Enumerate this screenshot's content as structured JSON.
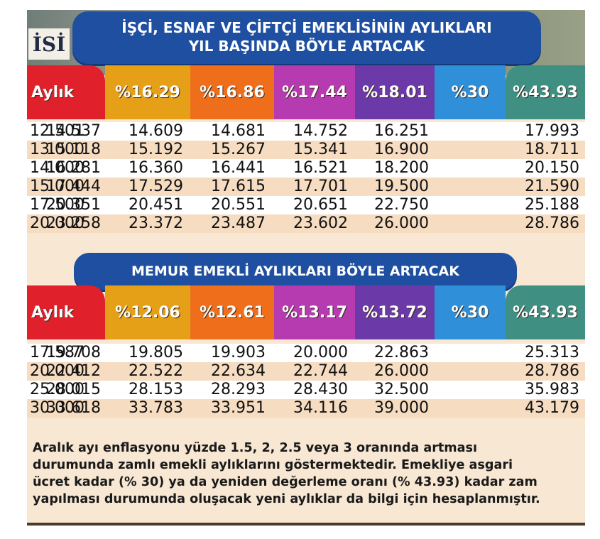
{
  "logo_text": "İSİ",
  "banner1": {
    "line1": "İŞÇİ, ESNAF VE ÇİFTÇİ EMEKLİSİNİN AYLIKLARI",
    "line2": "YIL BAŞINDA BÖYLE ARTACAK"
  },
  "table1": {
    "headers": [
      "Aylık",
      "%16.29",
      "%16.86",
      "%17.44",
      "%18.01",
      "%30",
      "%43.93"
    ],
    "rows": [
      [
        "12.501",
        "14.537",
        "14.609",
        "14.681",
        "14.752",
        "16.251",
        "17.993"
      ],
      [
        "13.000",
        "15.118",
        "15.192",
        "15.267",
        "15.341",
        "16.900",
        "18.711"
      ],
      [
        "14.000",
        "16.281",
        "16.360",
        "16.441",
        "16.521",
        "18.200",
        "20.150"
      ],
      [
        "15.000",
        "17.444",
        "17.529",
        "17.615",
        "17.701",
        "19.500",
        "21.590"
      ],
      [
        "17.500",
        "20.351",
        "20.451",
        "20.551",
        "20.651",
        "22.750",
        "25.188"
      ],
      [
        "20.000",
        "23.258",
        "23.372",
        "23.487",
        "23.602",
        "26.000",
        "28.786"
      ]
    ]
  },
  "banner2": {
    "text": "MEMUR EMEKLİ AYLIKLARI BÖYLE ARTACAK"
  },
  "table2": {
    "headers": [
      "Aylık",
      "%12.06",
      "%12.61",
      "%13.17",
      "%13.72",
      "%30",
      "%43.93"
    ],
    "rows": [
      [
        "17.587",
        "19.708",
        "19.805",
        "19.903",
        "20.000",
        "22.863",
        "25.313"
      ],
      [
        "20.000",
        "22.412",
        "22.522",
        "22.634",
        "22.744",
        "26.000",
        "28.786"
      ],
      [
        "25.000",
        "28.015",
        "28.153",
        "28.293",
        "28.430",
        "32.500",
        "35.983"
      ],
      [
        "30.000",
        "33.618",
        "33.783",
        "33.951",
        "34.116",
        "39.000",
        "43.179"
      ]
    ]
  },
  "footnote": {
    "lines": [
      "Aralık ayı enflasyonu yüzde 1.5, 2, 2.5 veya 3 oranında artması",
      "durumunda zamlı emekli aylıklarını göstermektedir. Emekliye asgari",
      "ücret kadar (% 30) ya da yeniden değerleme oranı (% 43.93) kadar zam",
      "yapılması durumunda oluşacak yeni aylıklar da bilgi için hesaplanmıştır."
    ]
  },
  "colors": {
    "banner": "#1f4fa1",
    "col_aylik": "#e0202a",
    "col_1": "#e6a017",
    "col_2": "#ee6e1c",
    "col_3": "#b63bb0",
    "col_4": "#6b3aa8",
    "col_5": "#2f8fd8",
    "col_6": "#3f8f83",
    "row_alt": "#f6dcc1"
  }
}
